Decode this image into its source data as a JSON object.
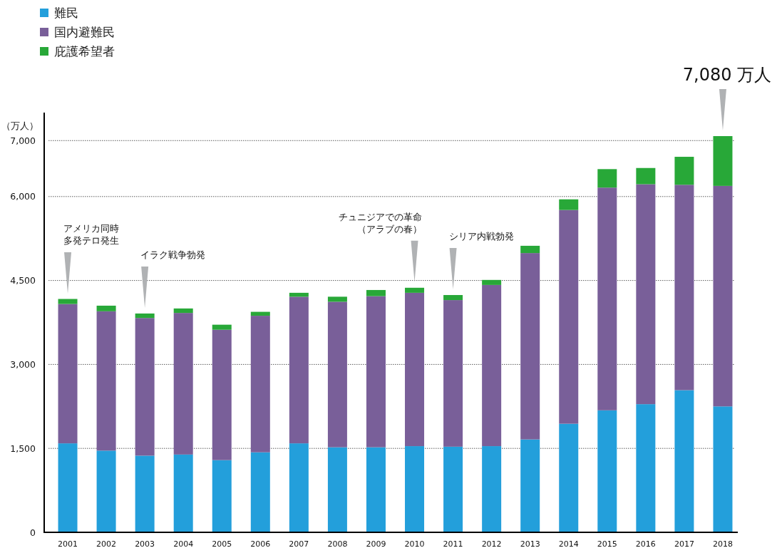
{
  "chart_data": {
    "type": "bar",
    "stacked": true,
    "ylabel": "（万人）",
    "categories": [
      "2001",
      "2002",
      "2003",
      "2004",
      "2005",
      "2006",
      "2007",
      "2008",
      "2009",
      "2010",
      "2011",
      "2012",
      "2013",
      "2014",
      "2015",
      "2016",
      "2017",
      "2018"
    ],
    "series": [
      {
        "name": "難民",
        "color": "#239fdb",
        "values": [
          1590,
          1460,
          1370,
          1390,
          1290,
          1430,
          1590,
          1520,
          1520,
          1540,
          1530,
          1540,
          1660,
          1940,
          2180,
          2290,
          2540,
          2250
        ]
      },
      {
        "name": "国内避難民",
        "color": "#795f99",
        "values": [
          2490,
          2490,
          2460,
          2530,
          2330,
          2440,
          2620,
          2600,
          2700,
          2740,
          2620,
          2880,
          3330,
          3820,
          3980,
          3930,
          3670,
          3940
        ]
      },
      {
        "name": "庇護希望者",
        "color": "#28a838",
        "values": [
          90,
          100,
          80,
          80,
          90,
          70,
          70,
          90,
          110,
          90,
          90,
          90,
          130,
          190,
          330,
          290,
          500,
          890
        ]
      }
    ],
    "ylim": [
      0,
      7500
    ],
    "yticks": [
      0,
      {
        "value": 1500,
        "label": "1,500"
      },
      {
        "value": 3000,
        "label": "3,000"
      },
      {
        "value": 4500,
        "label": "4,500"
      },
      {
        "value": 6000,
        "label": "6,000"
      },
      {
        "value": 7000,
        "label": "7,000"
      }
    ],
    "grid": "y",
    "legend": "top left",
    "annotations": [
      {
        "text": "アメリカ同時多発テロ発生",
        "x": "2001",
        "y": 4165
      },
      {
        "text": "イラク戦争勃発",
        "x": "2003",
        "y": 3910
      },
      {
        "text": "チュニジアでの革命（アラブの春）",
        "x": "2010",
        "y": 4370
      },
      {
        "text": "シリア内戦勃発",
        "x": "2011",
        "y": 4240
      },
      {
        "text": "7,080 万人",
        "x": "2018",
        "y": 7080
      }
    ]
  }
}
